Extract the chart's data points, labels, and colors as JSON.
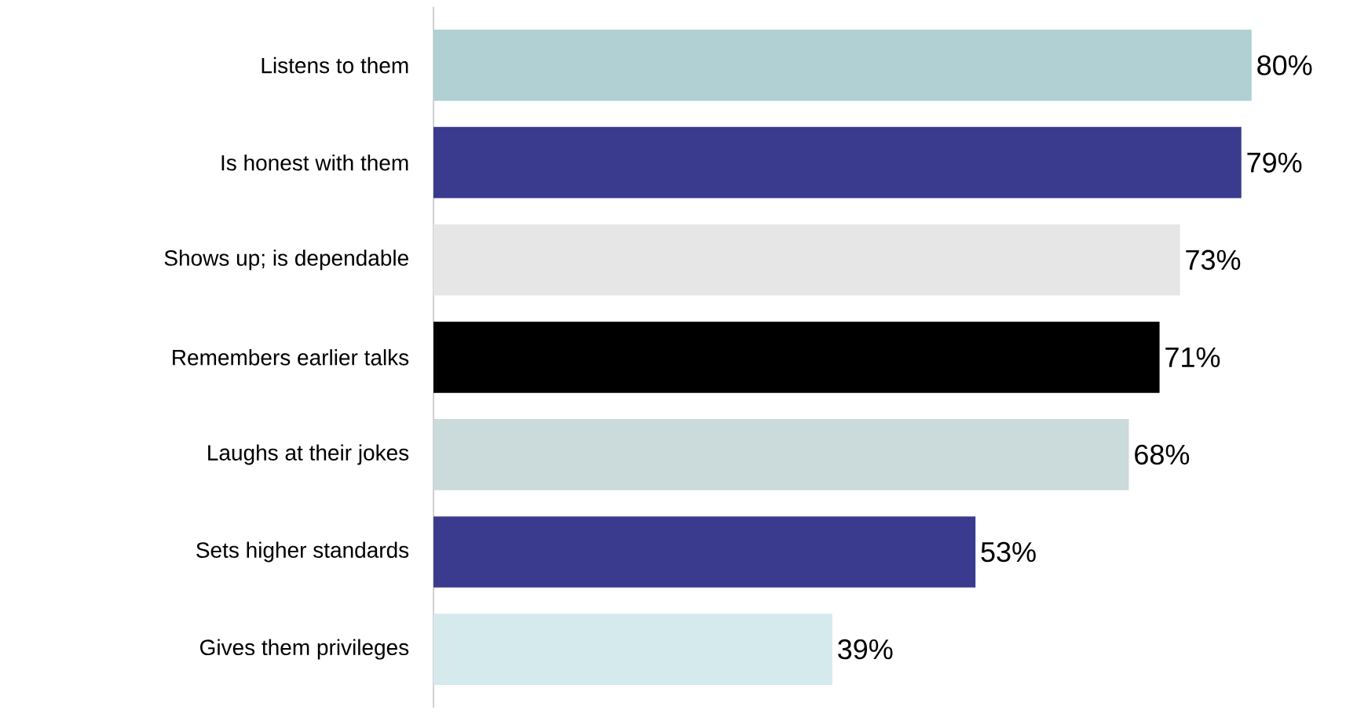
{
  "chart_data": {
    "type": "bar",
    "orientation": "horizontal",
    "categories": [
      "Listens to them",
      "Is honest with them",
      "Shows up; is dependable",
      "Remembers earlier talks",
      "Laughs at their jokes",
      "Sets higher standards",
      "Gives them privileges"
    ],
    "values": [
      80,
      79,
      73,
      71,
      68,
      53,
      39
    ],
    "colors": [
      "#b0d0d3",
      "#3a3a8f",
      "#e6e6e6",
      "#000000",
      "#cbdadb",
      "#3a3a8f",
      "#d5eaed"
    ],
    "value_labels": [
      "80%",
      "79%",
      "73%",
      "71%",
      "68%",
      "53%",
      "39%"
    ]
  }
}
